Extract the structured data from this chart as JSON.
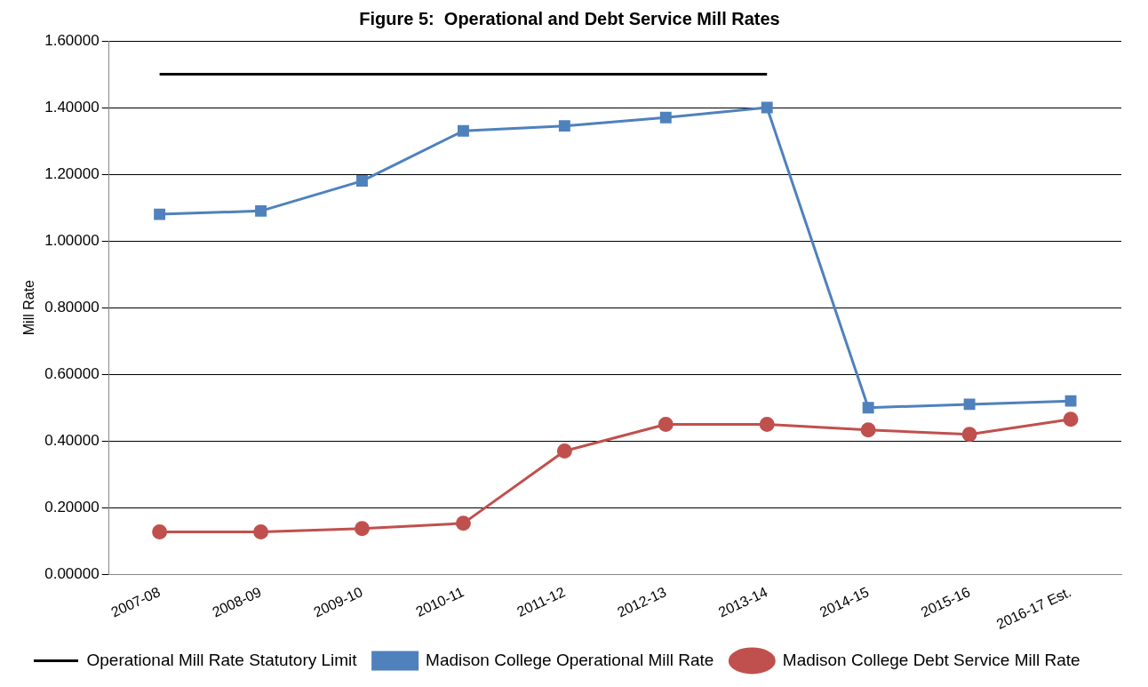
{
  "chart_data": {
    "type": "line",
    "title": "Figure 5:  Operational and Debt Service Mill Rates",
    "ylabel": "Mill Rate",
    "categories": [
      "2007-08",
      "2008-09",
      "2009-10",
      "2010-11",
      "2011-12",
      "2012-13",
      "2013-14",
      "2014-15",
      "2015-16",
      "2016-17 Est."
    ],
    "series": [
      {
        "name": "Operational Mill Rate Statutory Limit",
        "color": "#000000",
        "marker": "none",
        "values": [
          1.5,
          1.5,
          1.5,
          1.5,
          1.5,
          1.5,
          1.5,
          null,
          null,
          null
        ]
      },
      {
        "name": "Madison College Operational Mill Rate",
        "color": "#4f81bd",
        "marker": "square",
        "values": [
          1.08,
          1.09,
          1.18,
          1.33,
          1.345,
          1.37,
          1.4,
          0.5,
          0.51,
          0.52
        ]
      },
      {
        "name": "Madison College Debt Service Mill Rate",
        "color": "#c0504d",
        "marker": "circle",
        "values": [
          0.127,
          0.127,
          0.137,
          0.153,
          0.37,
          0.45,
          0.45,
          0.433,
          0.42,
          0.465
        ]
      }
    ],
    "ylim": [
      0,
      1.6
    ],
    "yticks": [
      {
        "value": 0,
        "label": "0.00000"
      },
      {
        "value": 0.2,
        "label": "0.20000"
      },
      {
        "value": 0.4,
        "label": "0.40000"
      },
      {
        "value": 0.6,
        "label": "0.60000"
      },
      {
        "value": 0.8,
        "label": "0.80000"
      },
      {
        "value": 1,
        "label": "1.00000"
      },
      {
        "value": 1.2,
        "label": "1.20000"
      },
      {
        "value": 1.4,
        "label": "1.40000"
      },
      {
        "value": 1.6,
        "label": "1.60000"
      }
    ],
    "grid": "y",
    "legend": "bottom"
  }
}
